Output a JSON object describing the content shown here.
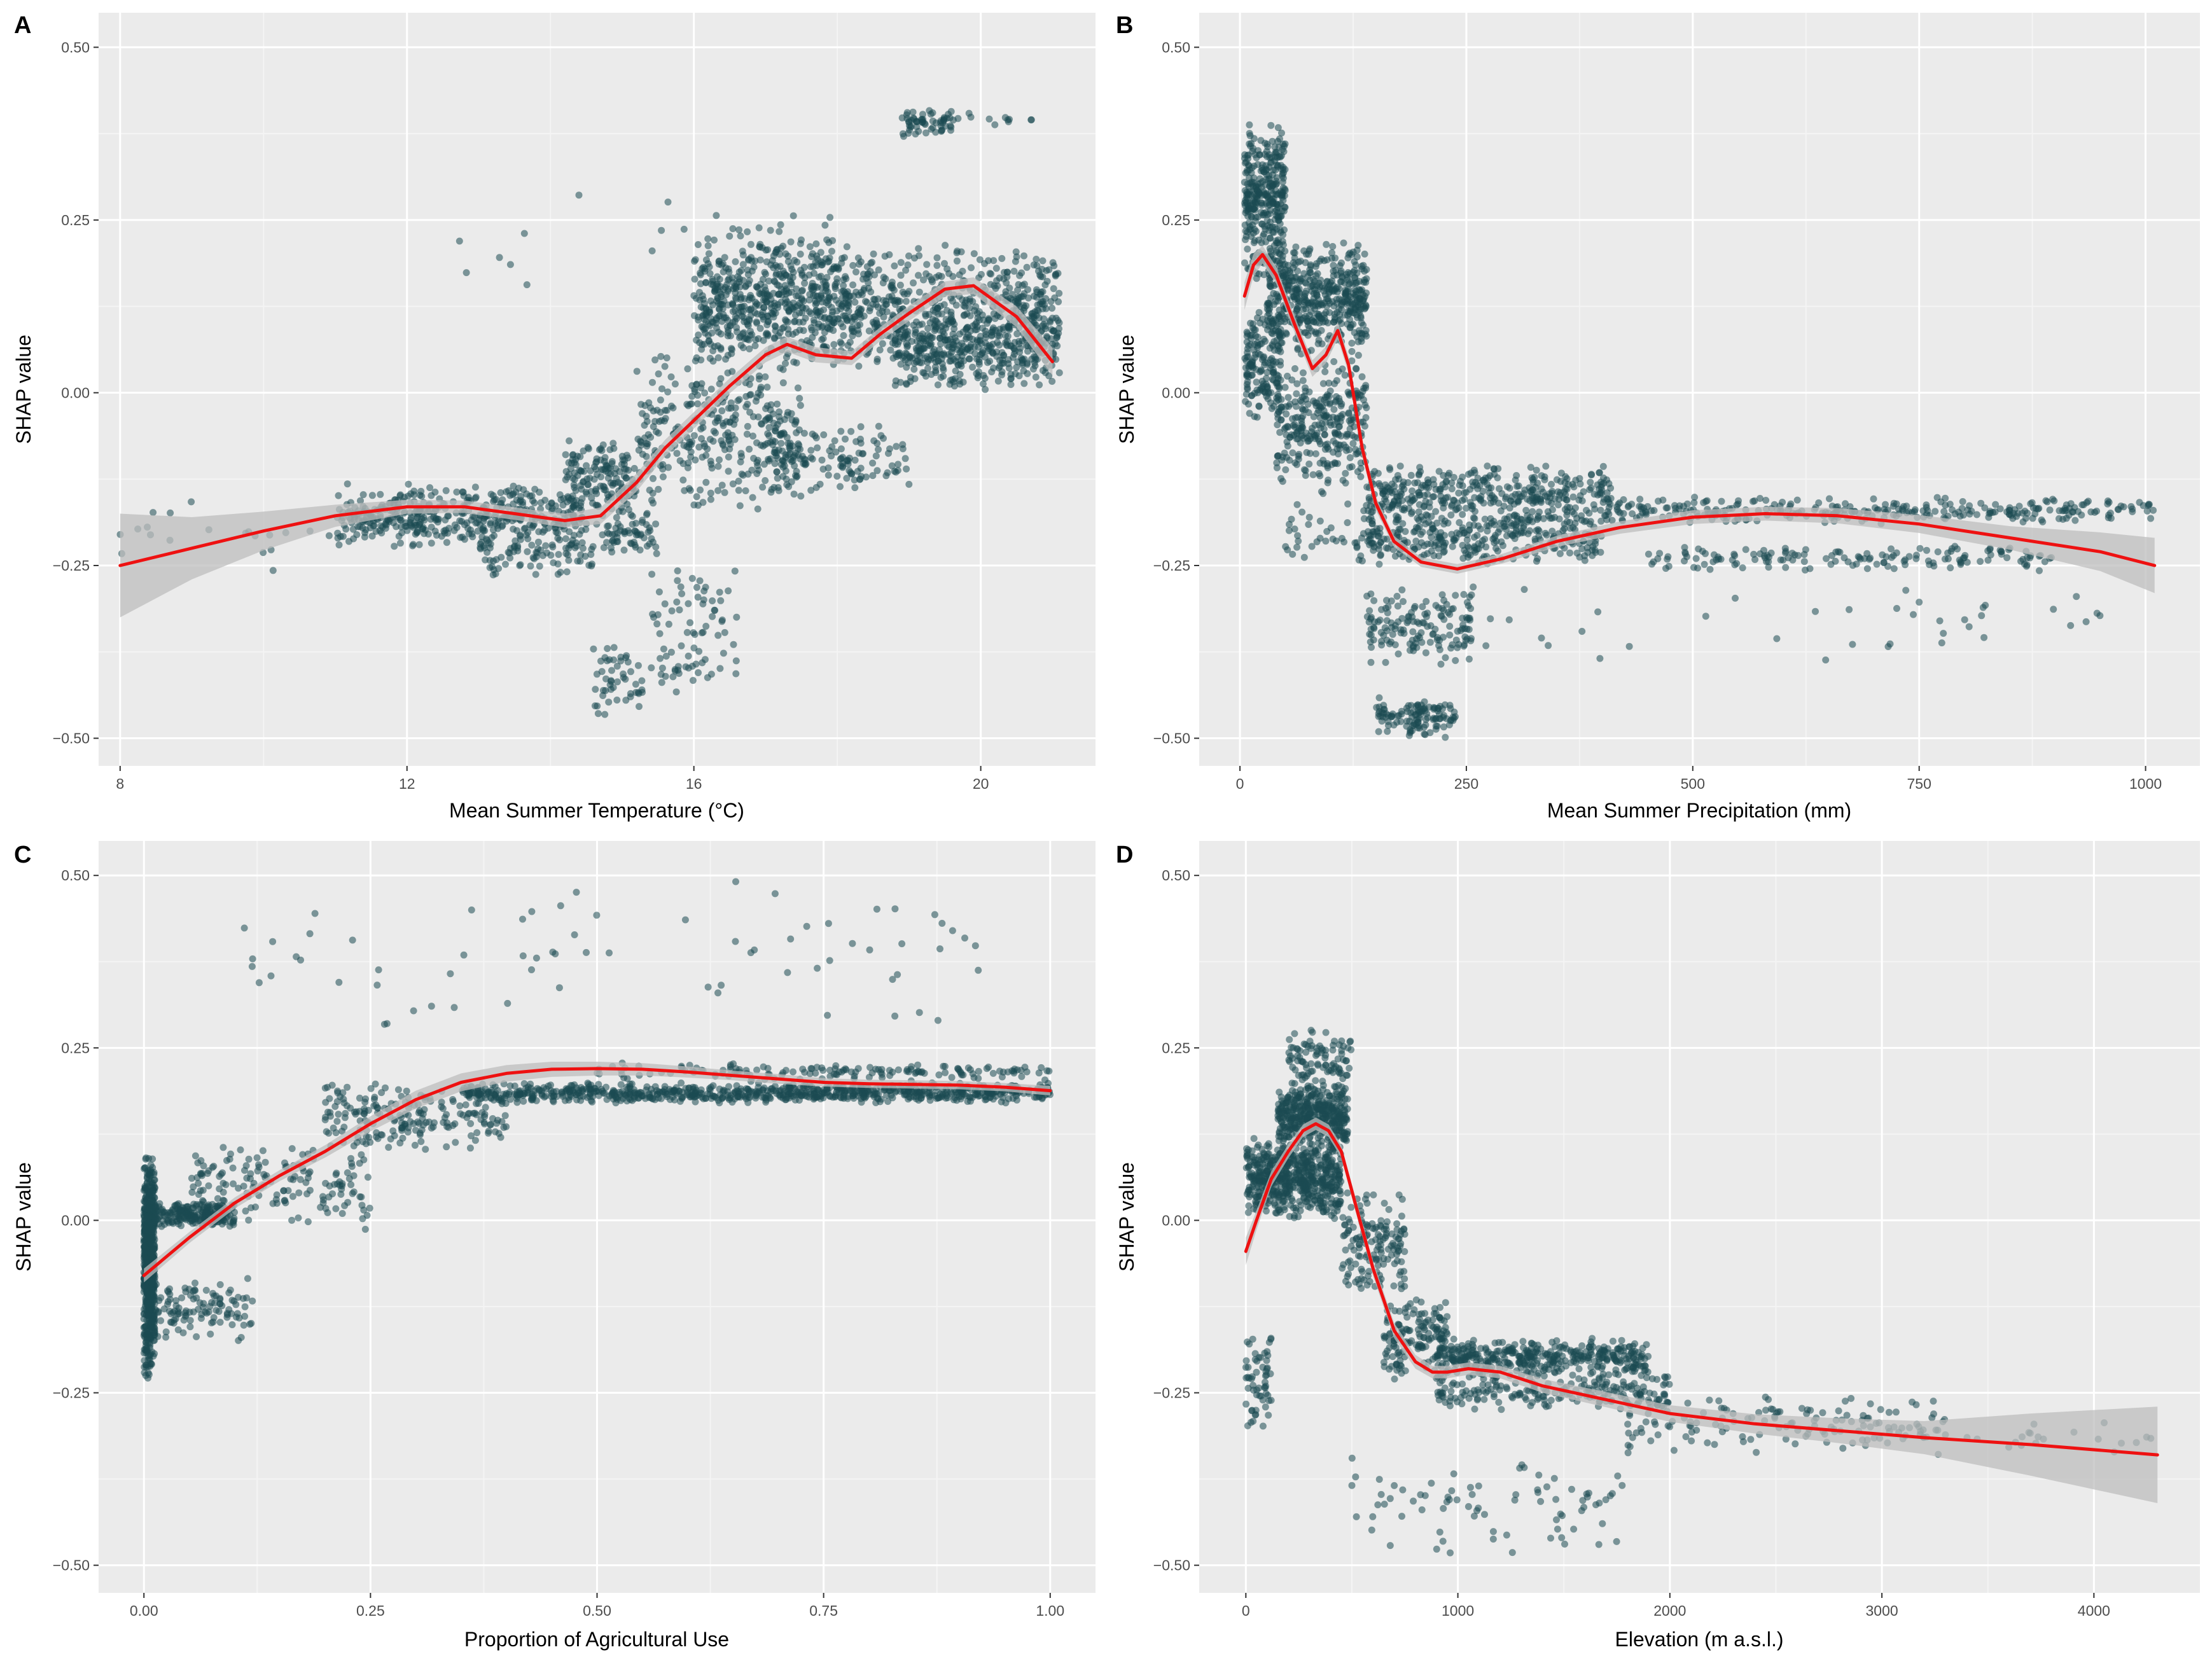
{
  "colors": {
    "panel_bg": "#ebebeb",
    "grid_major": "#ffffff",
    "grid_minor": "#f4f4f4",
    "point": "#1b4a52",
    "smooth_line": "#ee1111",
    "ribbon": "#bdbdbd",
    "tick_text": "#4d4d4d",
    "title_text": "#000000"
  },
  "chart_data": [
    {
      "id": "A",
      "type": "scatter",
      "panel_label": "A",
      "xlabel": "Mean Summer Temperature (°C)",
      "ylabel": "SHAP value",
      "xlim": [
        7.7,
        21.6
      ],
      "ylim": [
        -0.54,
        0.55
      ],
      "xticks": [
        8,
        12,
        16,
        20
      ],
      "xtick_labels": [
        "8",
        "12",
        "16",
        "20"
      ],
      "yticks": [
        -0.5,
        -0.25,
        0,
        0.25,
        0.5
      ],
      "ytick_labels": [
        "−0.50",
        "−0.25",
        "0.00",
        "0.25",
        "0.50"
      ],
      "clusters": [
        {
          "x": [
            8.0,
            11.0
          ],
          "y": [
            -0.26,
            -0.15
          ],
          "n": 20
        },
        {
          "x": [
            11.0,
            14.5
          ],
          "y": [
            -0.23,
            -0.13
          ],
          "n": 450
        },
        {
          "x": [
            13.0,
            14.6
          ],
          "y": [
            -0.27,
            -0.2
          ],
          "n": 80
        },
        {
          "x": [
            14.2,
            15.2
          ],
          "y": [
            -0.2,
            -0.06
          ],
          "n": 160
        },
        {
          "x": [
            14.7,
            15.5
          ],
          "y": [
            -0.25,
            -0.16
          ],
          "n": 60
        },
        {
          "x": [
            14.6,
            15.3
          ],
          "y": [
            -0.48,
            -0.36
          ],
          "n": 50
        },
        {
          "x": [
            15.4,
            16.6
          ],
          "y": [
            -0.45,
            -0.24
          ],
          "n": 80
        },
        {
          "x": [
            15.2,
            17.5
          ],
          "y": [
            -0.18,
            0.06
          ],
          "n": 350
        },
        {
          "x": [
            16.0,
            21.1
          ],
          "y": [
            0.03,
            0.22
          ],
          "n": 1000
        },
        {
          "x": [
            16.0,
            18.0
          ],
          "y": [
            0.03,
            0.26
          ],
          "n": 200
        },
        {
          "x": [
            17.0,
            19.0
          ],
          "y": [
            -0.15,
            -0.04
          ],
          "n": 120
        },
        {
          "x": [
            18.8,
            21.1
          ],
          "y": [
            0.0,
            0.11
          ],
          "n": 300
        },
        {
          "x": [
            18.9,
            19.6
          ],
          "y": [
            0.37,
            0.41
          ],
          "n": 60
        },
        {
          "x": [
            19.6,
            20.8
          ],
          "y": [
            0.38,
            0.41
          ],
          "n": 12
        },
        {
          "x": [
            12.5,
            16.5
          ],
          "y": [
            0.13,
            0.32
          ],
          "n": 12
        }
      ],
      "smooth": {
        "x": [
          8.0,
          9.0,
          10.0,
          11.0,
          12.0,
          12.8,
          13.5,
          14.2,
          14.7,
          15.2,
          15.6,
          16.0,
          16.5,
          17.0,
          17.3,
          17.7,
          18.2,
          18.6,
          19.0,
          19.5,
          19.9,
          20.5,
          21.0
        ],
        "y": [
          -0.25,
          -0.225,
          -0.2,
          -0.178,
          -0.165,
          -0.165,
          -0.175,
          -0.185,
          -0.178,
          -0.13,
          -0.08,
          -0.04,
          0.01,
          0.055,
          0.07,
          0.055,
          0.05,
          0.085,
          0.115,
          0.15,
          0.155,
          0.11,
          0.045
        ],
        "ribbon_halfwidth": [
          0.075,
          0.045,
          0.028,
          0.016,
          0.01,
          0.009,
          0.009,
          0.01,
          0.012,
          0.013,
          0.012,
          0.012,
          0.011,
          0.011,
          0.011,
          0.011,
          0.01,
          0.01,
          0.011,
          0.011,
          0.012,
          0.015,
          0.02
        ]
      }
    },
    {
      "id": "B",
      "type": "scatter",
      "panel_label": "B",
      "xlabel": "Mean Summer Precipitation (mm)",
      "ylabel": "SHAP value",
      "xlim": [
        -45,
        1060
      ],
      "ylim": [
        -0.54,
        0.55
      ],
      "xticks": [
        0,
        250,
        500,
        750,
        1000
      ],
      "xtick_labels": [
        "0",
        "250",
        "500",
        "750",
        "1000"
      ],
      "yticks": [
        -0.5,
        -0.25,
        0,
        0.25,
        0.5
      ],
      "ytick_labels": [
        "−0.50",
        "−0.25",
        "0.00",
        "0.25",
        "0.50"
      ],
      "clusters": [
        {
          "x": [
            5,
            50
          ],
          "y": [
            0.15,
            0.4
          ],
          "n": 350
        },
        {
          "x": [
            5,
            45
          ],
          "y": [
            -0.05,
            0.12
          ],
          "n": 150
        },
        {
          "x": [
            30,
            140
          ],
          "y": [
            0.05,
            0.22
          ],
          "n": 500
        },
        {
          "x": [
            40,
            140
          ],
          "y": [
            -0.15,
            0.05
          ],
          "n": 300
        },
        {
          "x": [
            40,
            140
          ],
          "y": [
            -0.27,
            -0.15
          ],
          "n": 40
        },
        {
          "x": [
            140,
            410
          ],
          "y": [
            -0.2,
            -0.1
          ],
          "n": 400
        },
        {
          "x": [
            140,
            400
          ],
          "y": [
            -0.25,
            -0.17
          ],
          "n": 300
        },
        {
          "x": [
            140,
            260
          ],
          "y": [
            -0.4,
            -0.28
          ],
          "n": 150
        },
        {
          "x": [
            150,
            240
          ],
          "y": [
            -0.5,
            -0.44
          ],
          "n": 120
        },
        {
          "x": [
            400,
            1010
          ],
          "y": [
            -0.19,
            -0.15
          ],
          "n": 300
        },
        {
          "x": [
            450,
            900
          ],
          "y": [
            -0.26,
            -0.22
          ],
          "n": 150
        },
        {
          "x": [
            200,
            960
          ],
          "y": [
            -0.4,
            -0.26
          ],
          "n": 40
        }
      ],
      "smooth": {
        "x": [
          5,
          15,
          25,
          40,
          60,
          80,
          95,
          108,
          120,
          135,
          150,
          170,
          200,
          240,
          290,
          350,
          420,
          500,
          580,
          660,
          750,
          850,
          950,
          1010
        ],
        "y": [
          0.14,
          0.185,
          0.2,
          0.17,
          0.1,
          0.035,
          0.055,
          0.09,
          0.04,
          -0.08,
          -0.16,
          -0.215,
          -0.245,
          -0.255,
          -0.24,
          -0.215,
          -0.195,
          -0.18,
          -0.175,
          -0.178,
          -0.19,
          -0.21,
          -0.23,
          -0.25
        ],
        "ribbon_halfwidth": [
          0.02,
          0.016,
          0.013,
          0.012,
          0.012,
          0.012,
          0.012,
          0.012,
          0.012,
          0.012,
          0.01,
          0.008,
          0.007,
          0.007,
          0.007,
          0.008,
          0.009,
          0.01,
          0.01,
          0.011,
          0.013,
          0.017,
          0.028,
          0.04
        ]
      }
    },
    {
      "id": "C",
      "type": "scatter",
      "panel_label": "C",
      "xlabel": "Proportion of Agricultural Use",
      "ylabel": "SHAP value",
      "xlim": [
        -0.05,
        1.05
      ],
      "ylim": [
        -0.54,
        0.55
      ],
      "xticks": [
        0,
        0.25,
        0.5,
        0.75,
        1.0
      ],
      "xtick_labels": [
        "0.00",
        "0.25",
        "0.50",
        "0.75",
        "1.00"
      ],
      "yticks": [
        -0.5,
        -0.25,
        0,
        0.25,
        0.5
      ],
      "ytick_labels": [
        "−0.50",
        "−0.25",
        "0.00",
        "0.25",
        "0.50"
      ],
      "clusters": [
        {
          "x": [
            0.0,
            0.012
          ],
          "y": [
            -0.23,
            0.1
          ],
          "n": 700
        },
        {
          "x": [
            0.0,
            0.1
          ],
          "y": [
            -0.01,
            0.03
          ],
          "n": 250
        },
        {
          "x": [
            0.0,
            0.12
          ],
          "y": [
            -0.18,
            -0.08
          ],
          "n": 120
        },
        {
          "x": [
            0.05,
            0.25
          ],
          "y": [
            -0.02,
            0.12
          ],
          "n": 160
        },
        {
          "x": [
            0.2,
            0.4
          ],
          "y": [
            0.1,
            0.2
          ],
          "n": 200
        },
        {
          "x": [
            0.35,
            1.0
          ],
          "y": [
            0.17,
            0.2
          ],
          "n": 800
        },
        {
          "x": [
            0.5,
            1.0
          ],
          "y": [
            0.2,
            0.23
          ],
          "n": 150
        },
        {
          "x": [
            0.1,
            0.95
          ],
          "y": [
            0.25,
            0.5
          ],
          "n": 70
        }
      ],
      "smooth": {
        "x": [
          0.0,
          0.05,
          0.1,
          0.15,
          0.2,
          0.25,
          0.3,
          0.35,
          0.4,
          0.45,
          0.5,
          0.55,
          0.6,
          0.65,
          0.7,
          0.75,
          0.8,
          0.85,
          0.9,
          0.95,
          1.0
        ],
        "y": [
          -0.08,
          -0.025,
          0.025,
          0.065,
          0.1,
          0.14,
          0.175,
          0.2,
          0.213,
          0.219,
          0.22,
          0.219,
          0.215,
          0.21,
          0.205,
          0.2,
          0.198,
          0.197,
          0.196,
          0.193,
          0.188
        ],
        "ribbon_halfwidth": [
          0.01,
          0.008,
          0.008,
          0.008,
          0.009,
          0.011,
          0.013,
          0.013,
          0.012,
          0.011,
          0.01,
          0.009,
          0.008,
          0.007,
          0.007,
          0.006,
          0.006,
          0.006,
          0.006,
          0.006,
          0.007
        ]
      }
    },
    {
      "id": "D",
      "type": "scatter",
      "panel_label": "D",
      "xlabel": "Elevation (m a.s.l.)",
      "ylabel": "SHAP value",
      "xlim": [
        -220,
        4500
      ],
      "ylim": [
        -0.54,
        0.55
      ],
      "xticks": [
        0,
        1000,
        2000,
        3000,
        4000
      ],
      "xtick_labels": [
        "0",
        "1000",
        "2000",
        "3000",
        "4000"
      ],
      "yticks": [
        -0.5,
        -0.25,
        0,
        0.25,
        0.5
      ],
      "ytick_labels": [
        "−0.50",
        "−0.25",
        "0.00",
        "0.25",
        "0.50"
      ],
      "clusters": [
        {
          "x": [
            0,
            120
          ],
          "y": [
            -0.32,
            -0.15
          ],
          "n": 60
        },
        {
          "x": [
            0,
            450
          ],
          "y": [
            0.0,
            0.12
          ],
          "n": 600
        },
        {
          "x": [
            150,
            480
          ],
          "y": [
            0.1,
            0.2
          ],
          "n": 400
        },
        {
          "x": [
            200,
            500
          ],
          "y": [
            0.18,
            0.28
          ],
          "n": 100
        },
        {
          "x": [
            450,
            750
          ],
          "y": [
            -0.12,
            0.05
          ],
          "n": 150
        },
        {
          "x": [
            650,
            950
          ],
          "y": [
            -0.24,
            -0.1
          ],
          "n": 150
        },
        {
          "x": [
            900,
            1900
          ],
          "y": [
            -0.23,
            -0.17
          ],
          "n": 400
        },
        {
          "x": [
            900,
            2000
          ],
          "y": [
            -0.28,
            -0.22
          ],
          "n": 200
        },
        {
          "x": [
            1800,
            3300
          ],
          "y": [
            -0.34,
            -0.25
          ],
          "n": 150
        },
        {
          "x": [
            3300,
            4300
          ],
          "y": [
            -0.34,
            -0.29
          ],
          "n": 20
        },
        {
          "x": [
            500,
            1800
          ],
          "y": [
            -0.5,
            -0.33
          ],
          "n": 80
        }
      ],
      "smooth": {
        "x": [
          0,
          50,
          120,
          200,
          270,
          330,
          390,
          450,
          520,
          600,
          700,
          800,
          880,
          950,
          1050,
          1200,
          1400,
          1700,
          2000,
          2400,
          2800,
          3200,
          3700,
          4300
        ],
        "y": [
          -0.045,
          0.0,
          0.06,
          0.1,
          0.13,
          0.14,
          0.13,
          0.1,
          0.02,
          -0.07,
          -0.16,
          -0.205,
          -0.22,
          -0.22,
          -0.215,
          -0.22,
          -0.24,
          -0.26,
          -0.28,
          -0.295,
          -0.305,
          -0.315,
          -0.325,
          -0.34
        ],
        "ribbon_halfwidth": [
          0.02,
          0.014,
          0.011,
          0.01,
          0.009,
          0.009,
          0.009,
          0.009,
          0.01,
          0.011,
          0.011,
          0.01,
          0.009,
          0.009,
          0.009,
          0.009,
          0.01,
          0.011,
          0.012,
          0.014,
          0.018,
          0.024,
          0.045,
          0.07
        ]
      }
    }
  ]
}
